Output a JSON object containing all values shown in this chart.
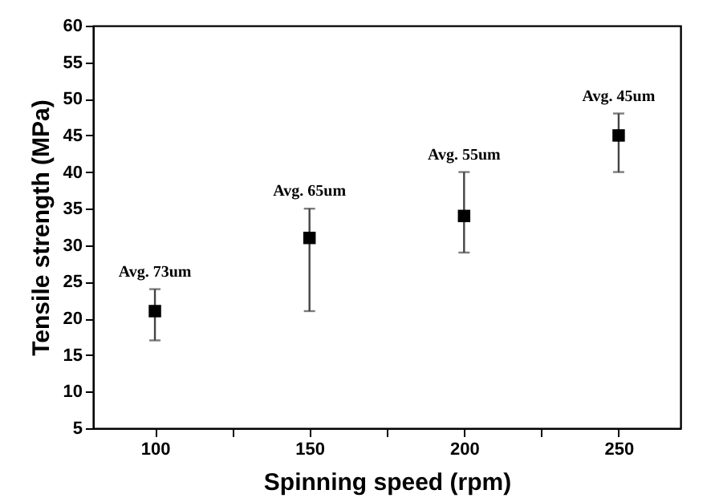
{
  "chart_data": {
    "type": "scatter",
    "xlabel": "Spinning speed (rpm)",
    "ylabel": "Tensile strength (MPa)",
    "x": [
      100,
      150,
      200,
      250
    ],
    "values": [
      21,
      31,
      34,
      45
    ],
    "errors": [
      [
        17,
        24
      ],
      [
        21,
        35
      ],
      [
        29,
        40
      ],
      [
        40,
        48
      ]
    ],
    "color": "#000000",
    "marker": "square",
    "xlim": [
      80,
      270
    ],
    "xticks": [
      100,
      {
        "value": 125,
        "label": null
      },
      150,
      {
        "value": 175,
        "label": null
      },
      200,
      {
        "value": 225,
        "label": null
      },
      250
    ],
    "ylim": [
      5,
      60
    ],
    "yticks": [
      5,
      10,
      15,
      20,
      25,
      30,
      35,
      40,
      45,
      50,
      55,
      60
    ],
    "grid": false,
    "annotations": [
      {
        "text": "Avg. 73um",
        "x": 100,
        "y": 24
      },
      {
        "text": "Avg. 65um",
        "x": 150,
        "y": 35
      },
      {
        "text": "Avg. 55um",
        "x": 200,
        "y": 40
      },
      {
        "text": "Avg. 45um",
        "x": 250,
        "y": 48
      }
    ]
  }
}
